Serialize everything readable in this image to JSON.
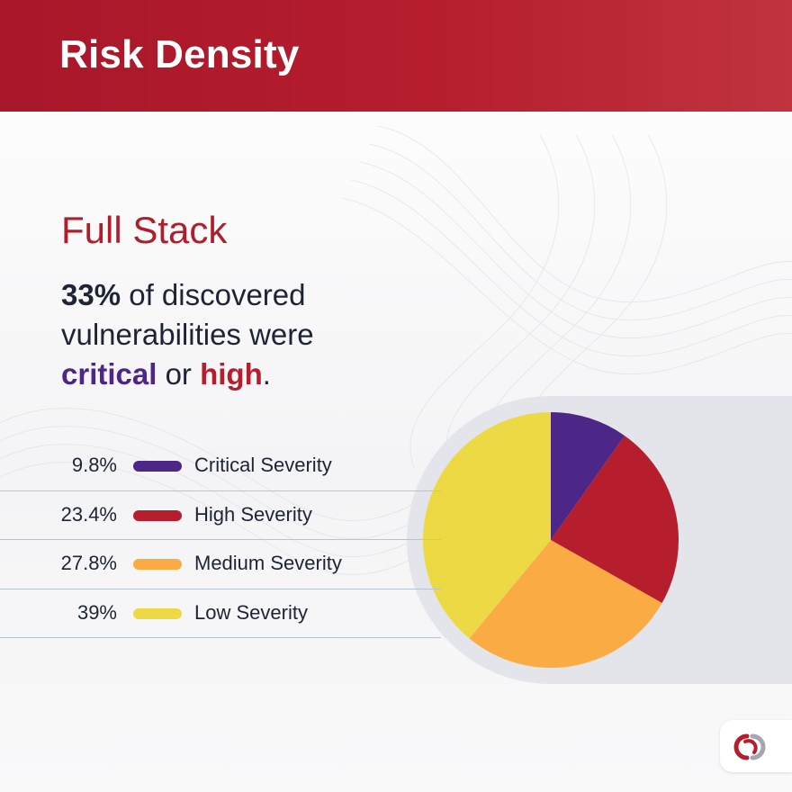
{
  "header": {
    "title": "Risk Density"
  },
  "subtitle": "Full Stack",
  "statement": {
    "highlight": "33%",
    "line1_rest": " of discovered",
    "line2": "vulnerabilities were",
    "critical_word": "critical",
    "connector": " or ",
    "high_word": "high",
    "period": "."
  },
  "colors": {
    "header": "#b61e2e",
    "critical": "#4c2787",
    "high": "#b61e2e",
    "medium": "#fbab43",
    "low": "#ecd944",
    "panel": "#e4e5ea"
  },
  "chart_data": {
    "type": "pie",
    "title": "",
    "categories": [
      "Critical Severity",
      "High Severity",
      "Medium Severity",
      "Low Severity"
    ],
    "values": [
      9.8,
      23.4,
      27.8,
      39
    ],
    "value_labels": [
      "9.8%",
      "23.4%",
      "27.8%",
      "39%"
    ],
    "colors": [
      "#4c2787",
      "#b61e2e",
      "#fbab43",
      "#ecd944"
    ],
    "legend_placement": "left",
    "start_angle_deg": 0,
    "direction": "clockwise"
  },
  "logo": {
    "icon": "brand-logo-icon"
  }
}
